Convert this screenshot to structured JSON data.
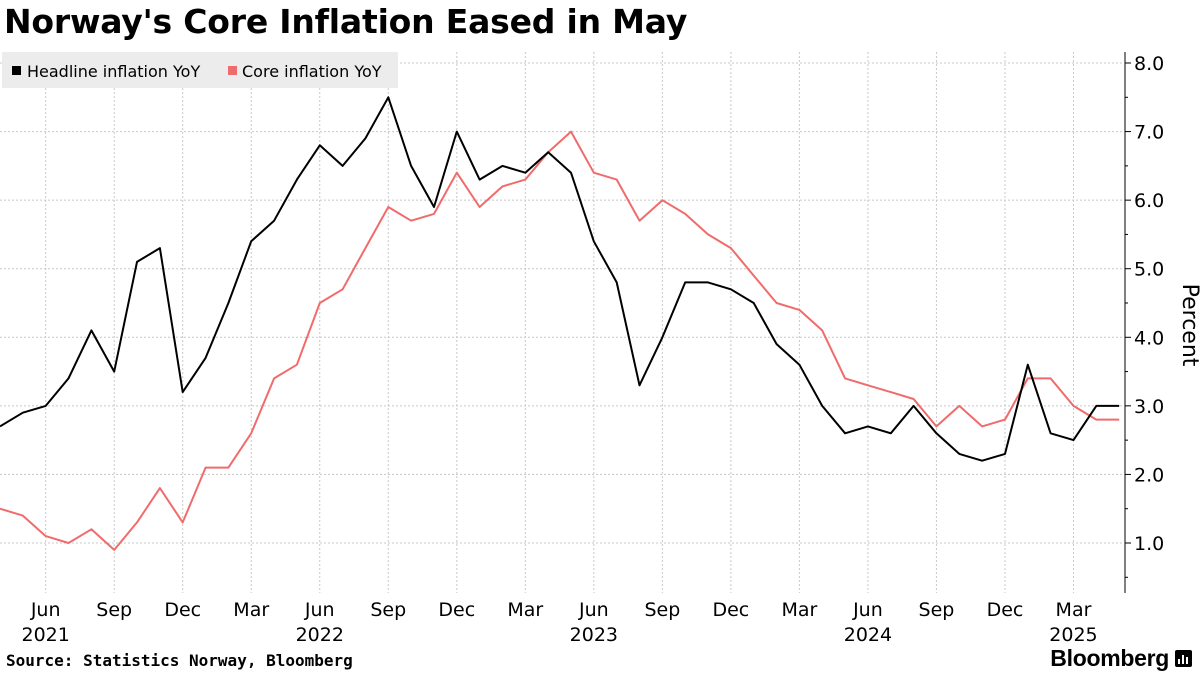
{
  "title": "Norway's Core Inflation Eased in May",
  "source": "Source: Statistics Norway, Bloomberg",
  "brand": {
    "name": "Bloomberg",
    "icon": "bloomberg-terminal-icon"
  },
  "chart_data": {
    "type": "line",
    "title": "Norway's Core Inflation Eased in May",
    "ylabel": "Percent",
    "xlabel": "",
    "ylim": [
      0.3,
      8.2
    ],
    "y_ticks": [
      1.0,
      2.0,
      3.0,
      4.0,
      5.0,
      6.0,
      7.0,
      8.0
    ],
    "y_tick_labels": [
      "1.0",
      "2.0",
      "3.0",
      "4.0",
      "5.0",
      "6.0",
      "7.0",
      "8.0"
    ],
    "grid": true,
    "legend_position": "top-left",
    "x": [
      "2021-04",
      "2021-05",
      "2021-06",
      "2021-07",
      "2021-08",
      "2021-09",
      "2021-10",
      "2021-11",
      "2021-12",
      "2022-01",
      "2022-02",
      "2022-03",
      "2022-04",
      "2022-05",
      "2022-06",
      "2022-07",
      "2022-08",
      "2022-09",
      "2022-10",
      "2022-11",
      "2022-12",
      "2023-01",
      "2023-02",
      "2023-03",
      "2023-04",
      "2023-05",
      "2023-06",
      "2023-07",
      "2023-08",
      "2023-09",
      "2023-10",
      "2023-11",
      "2023-12",
      "2024-01",
      "2024-02",
      "2024-03",
      "2024-04",
      "2024-05",
      "2024-06",
      "2024-07",
      "2024-08",
      "2024-09",
      "2024-10",
      "2024-11",
      "2024-12",
      "2025-01",
      "2025-02",
      "2025-03",
      "2025-04",
      "2025-05"
    ],
    "x_ticks": [
      {
        "month": "Jun",
        "year": "2021",
        "x": "2021-06"
      },
      {
        "month": "Sep",
        "year": "",
        "x": "2021-09"
      },
      {
        "month": "Dec",
        "year": "",
        "x": "2021-12"
      },
      {
        "month": "Mar",
        "year": "",
        "x": "2022-03"
      },
      {
        "month": "Jun",
        "year": "2022",
        "x": "2022-06"
      },
      {
        "month": "Sep",
        "year": "",
        "x": "2022-09"
      },
      {
        "month": "Dec",
        "year": "",
        "x": "2022-12"
      },
      {
        "month": "Mar",
        "year": "",
        "x": "2023-03"
      },
      {
        "month": "Jun",
        "year": "2023",
        "x": "2023-06"
      },
      {
        "month": "Sep",
        "year": "",
        "x": "2023-09"
      },
      {
        "month": "Dec",
        "year": "",
        "x": "2023-12"
      },
      {
        "month": "Mar",
        "year": "",
        "x": "2024-03"
      },
      {
        "month": "Jun",
        "year": "2024",
        "x": "2024-06"
      },
      {
        "month": "Sep",
        "year": "",
        "x": "2024-09"
      },
      {
        "month": "Dec",
        "year": "",
        "x": "2024-12"
      },
      {
        "month": "Mar",
        "year": "2025",
        "x": "2025-03"
      }
    ],
    "series": [
      {
        "name": "Headline inflation YoY",
        "color": "#000000",
        "values": [
          2.7,
          2.9,
          3.0,
          3.4,
          4.1,
          3.5,
          5.1,
          5.3,
          3.2,
          3.7,
          4.5,
          5.4,
          5.7,
          6.3,
          6.8,
          6.5,
          6.9,
          7.5,
          6.5,
          5.9,
          7.0,
          6.3,
          6.5,
          6.4,
          6.7,
          6.4,
          5.4,
          4.8,
          3.3,
          4.0,
          4.8,
          4.8,
          4.7,
          4.5,
          3.9,
          3.6,
          3.0,
          2.6,
          2.7,
          2.6,
          3.0,
          2.6,
          2.3,
          2.2,
          2.3,
          3.6,
          2.6,
          2.5,
          3.0,
          3.0
        ]
      },
      {
        "name": "Core inflation YoY",
        "color": "#f06b6b",
        "values": [
          1.5,
          1.4,
          1.1,
          1.0,
          1.2,
          0.9,
          1.3,
          1.8,
          1.3,
          2.1,
          2.1,
          2.6,
          3.4,
          3.6,
          4.5,
          4.7,
          5.3,
          5.9,
          5.7,
          5.8,
          6.4,
          5.9,
          6.2,
          6.3,
          6.7,
          7.0,
          6.4,
          6.3,
          5.7,
          6.0,
          5.8,
          5.5,
          5.3,
          4.9,
          4.5,
          4.4,
          4.1,
          3.4,
          3.3,
          3.2,
          3.1,
          2.7,
          3.0,
          2.7,
          2.8,
          3.4,
          3.4,
          3.0,
          2.8,
          2.8
        ]
      }
    ]
  }
}
